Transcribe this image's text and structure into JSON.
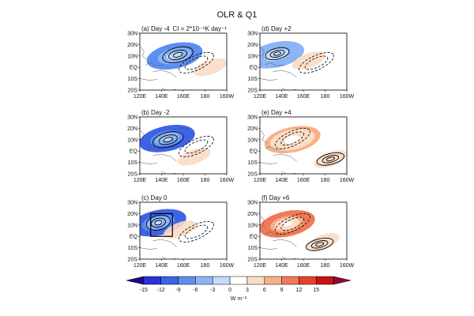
{
  "chart_data": {
    "type": "heatmap",
    "title": "OLR & Q1",
    "contour_interval_note": "CI = 2*10⁻⁵K day⁻¹",
    "x_ticks": [
      "120E",
      "140E",
      "160E",
      "180",
      "160W"
    ],
    "y_ticks": [
      "30N",
      "20N",
      "10N",
      "EQ",
      "10S",
      "20S"
    ],
    "lon_range": [
      120,
      200
    ],
    "lat_range": [
      -20,
      30
    ],
    "colorbar": {
      "levels": [
        -15,
        -12,
        -9,
        -6,
        -3,
        0,
        3,
        6,
        9,
        12,
        15
      ],
      "tick_labels": [
        "-15",
        "-12",
        "-9",
        "-6",
        "-3",
        "0",
        "3",
        "6",
        "9",
        "12",
        "15"
      ],
      "colors": [
        "#1a0a8c",
        "#2a32d4",
        "#3d63e8",
        "#5d8ff0",
        "#8cb4f6",
        "#c2dbfb",
        "#ffffff",
        "#fbdcc4",
        "#f6b08a",
        "#f07a58",
        "#e5422c",
        "#c81414",
        "#8c0a2a"
      ],
      "units": "W m⁻²"
    },
    "panels": [
      {
        "label": "(a) Day -4",
        "olr_center": [
          152,
          10
        ],
        "olr_amp": -8,
        "q1": {
          "cx": 155,
          "cy": 11,
          "rx": 9,
          "ry": 4
        },
        "secondary": {
          "cx": 185,
          "cy": 0,
          "sign": 1,
          "amp": 3
        }
      },
      {
        "label": "(d) Day +2",
        "olr_center": [
          135,
          11
        ],
        "olr_amp": -5,
        "q1": {
          "cx": 136,
          "cy": 12,
          "rx": 7,
          "ry": 3
        },
        "secondary": {
          "cx": 165,
          "cy": 6,
          "sign": 1,
          "amp": 4
        }
      },
      {
        "label": "(b) Day -2",
        "olr_center": [
          145,
          11
        ],
        "olr_amp": -12,
        "q1": {
          "cx": 146,
          "cy": 10,
          "rx": 9,
          "ry": 4
        },
        "secondary": {
          "cx": 170,
          "cy": -5,
          "sign": 1,
          "amp": 3
        }
      },
      {
        "label": "(e) Day +4",
        "olr_center": [
          150,
          10
        ],
        "olr_amp": 6,
        "q1": {
          "cx": 185,
          "cy": -7,
          "rx": 8,
          "ry": 3
        },
        "secondary": {
          "cx": 185,
          "cy": -7,
          "sign": -1,
          "amp": 3
        }
      },
      {
        "label": "(c) Day 0",
        "olr_center": [
          137,
          12
        ],
        "olr_amp": -12,
        "q1": {
          "cx": 137,
          "cy": 12,
          "rx": 7,
          "ry": 4
        },
        "secondary": {
          "cx": 157,
          "cy": 6,
          "sign": 1,
          "amp": 4
        }
      },
      {
        "label": "(f) Day +6",
        "olr_center": [
          145,
          11
        ],
        "olr_amp": 11,
        "q1": {
          "cx": 175,
          "cy": -7,
          "rx": 8,
          "ry": 3
        },
        "secondary": {
          "cx": 178,
          "cy": -5,
          "sign": -1,
          "amp": 3
        }
      }
    ],
    "box_highlight": {
      "panel": 4,
      "lon": [
        130,
        150
      ],
      "lat": [
        0,
        20
      ]
    }
  }
}
